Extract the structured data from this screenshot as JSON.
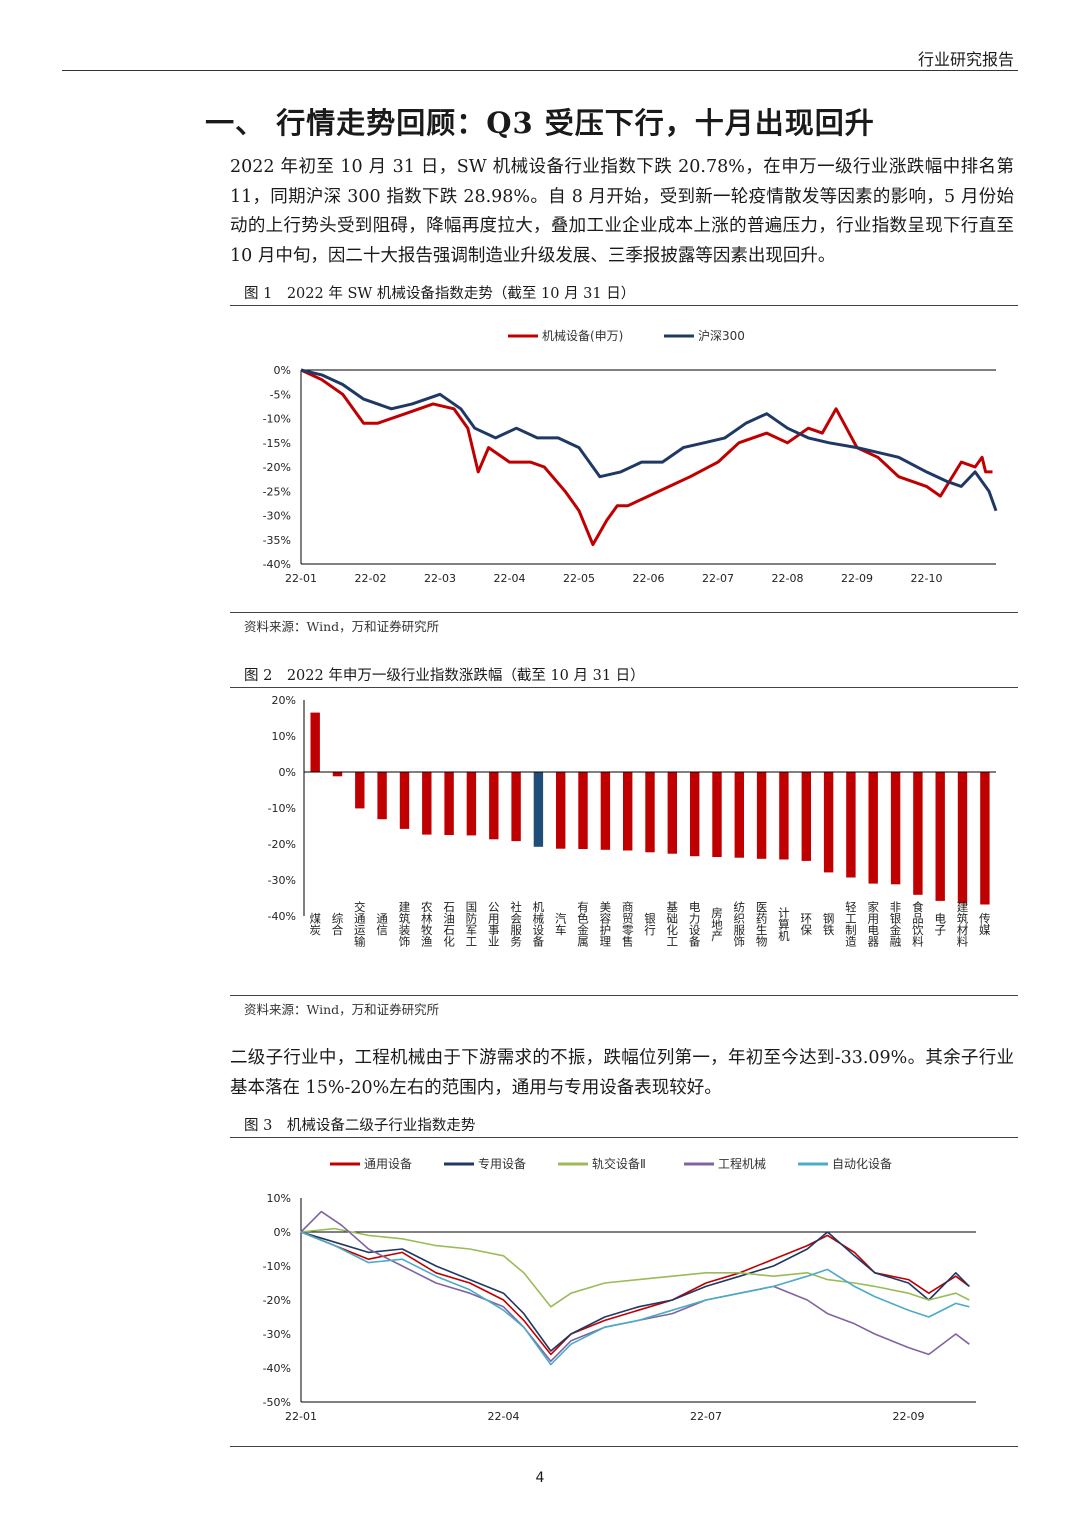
{
  "header": {
    "title": "行业研究报告"
  },
  "section": {
    "title": "一、 行情走势回顾：Q3 受压下行，十月出现回升"
  },
  "paragraphs": {
    "p1": "2022 年初至 10 月 31 日，SW 机械设备行业指数下跌 20.78%，在申万一级行业涨跌幅中排名第 11，同期沪深 300 指数下跌 28.98%。自 8 月开始，受到新一轮疫情散发等因素的影响，5 月份始动的上行势头受到阻碍，降幅再度拉大，叠加工业企业成本上涨的普遍压力，行业指数呈现下行直至 10 月中旬，因二十大报告强调制造业升级发展、三季报披露等因素出现回升。",
    "p2": "二级子行业中，工程机械由于下游需求的不振，跌幅位列第一，年初至今达到-33.09%。其余子行业基本落在 15%-20%左右的范围内，通用与专用设备表现较好。"
  },
  "figures": {
    "fig1": {
      "title": "图 1　2022 年 SW 机械设备指数走势（截至 10 月 31 日）",
      "source": "资料来源：Wind，万和证券研究所"
    },
    "fig2": {
      "title": "图 2　2022 年申万一级行业指数涨跌幅（截至 10 月 31 日）",
      "source": "资料来源：Wind，万和证券研究所"
    },
    "fig3": {
      "title": "图 3　机械设备二级子行业指数走势"
    }
  },
  "page_number": "4",
  "chart_data": [
    {
      "id": "fig1",
      "type": "line",
      "title": "2022 年 SW 机械设备指数走势",
      "x_labels": [
        "22-01",
        "22-02",
        "22-03",
        "22-04",
        "22-05",
        "22-06",
        "22-07",
        "22-08",
        "22-09",
        "22-10"
      ],
      "y_ticks": [
        0,
        -5,
        -10,
        -15,
        -20,
        -25,
        -30,
        -35,
        -40
      ],
      "y_tick_labels": [
        "0%",
        "-5%",
        "-10%",
        "-15%",
        "-20%",
        "-25%",
        "-30%",
        "-35%",
        "-40%"
      ],
      "ylim": [
        -40,
        0
      ],
      "xlim": [
        0,
        10
      ],
      "legend_position": "top-center",
      "series": [
        {
          "name": "机械设备(申万)",
          "color": "#C00000",
          "x": [
            0,
            0.3,
            0.6,
            0.9,
            1.1,
            1.5,
            1.9,
            2.2,
            2.4,
            2.55,
            2.7,
            3.0,
            3.3,
            3.5,
            3.8,
            4.0,
            4.2,
            4.4,
            4.55,
            4.7,
            5.0,
            5.3,
            5.6,
            6.0,
            6.3,
            6.7,
            7.0,
            7.3,
            7.5,
            7.7,
            8.0,
            8.3,
            8.6,
            9.0,
            9.2,
            9.5,
            9.7,
            9.8,
            9.85,
            9.95
          ],
          "y": [
            0,
            -2,
            -5,
            -11,
            -11,
            -9,
            -7,
            -8,
            -12,
            -21,
            -16,
            -19,
            -19,
            -20,
            -25,
            -29,
            -36,
            -31,
            -28,
            -28,
            -26,
            -24,
            -22,
            -19,
            -15,
            -13,
            -15,
            -12,
            -13,
            -8,
            -16,
            -18,
            -22,
            -24,
            -26,
            -19,
            -20,
            -18,
            -21,
            -21
          ]
        },
        {
          "name": "沪深300",
          "color": "#1F3864",
          "x": [
            0,
            0.3,
            0.6,
            0.9,
            1.3,
            1.6,
            2.0,
            2.3,
            2.5,
            2.8,
            3.1,
            3.4,
            3.7,
            4.0,
            4.3,
            4.6,
            4.9,
            5.2,
            5.5,
            5.8,
            6.1,
            6.4,
            6.7,
            7.0,
            7.3,
            7.6,
            8.0,
            8.3,
            8.6,
            9.0,
            9.3,
            9.5,
            9.7,
            9.9,
            10.0
          ],
          "y": [
            0,
            -1,
            -3,
            -6,
            -8,
            -7,
            -5,
            -8,
            -12,
            -14,
            -12,
            -14,
            -14,
            -16,
            -22,
            -21,
            -19,
            -19,
            -16,
            -15,
            -14,
            -11,
            -9,
            -12,
            -14,
            -15,
            -16,
            -17,
            -18,
            -21,
            -23,
            -24,
            -21,
            -25,
            -29
          ]
        }
      ]
    },
    {
      "id": "fig2",
      "type": "bar",
      "title": "2022 年申万一级行业指数涨跌幅",
      "categories": [
        "煤炭",
        "综合",
        "交通运输",
        "通信",
        "建筑装饰",
        "农林牧渔",
        "石油石化",
        "国防军工",
        "公用事业",
        "社会服务",
        "机械设备",
        "汽车",
        "有色金属",
        "美容护理",
        "商贸零售",
        "银行",
        "基础化工",
        "电力设备",
        "房地产",
        "纺织服饰",
        "医药生物",
        "计算机",
        "环保",
        "钢铁",
        "轻工制造",
        "家用电器",
        "非银金融",
        "食品饮料",
        "电子",
        "建筑材料",
        "传媒"
      ],
      "values": [
        16.5,
        -1.2,
        -10.1,
        -13.1,
        -15.8,
        -17.4,
        -17.5,
        -17.6,
        -18.7,
        -19.2,
        -20.78,
        -21.3,
        -21.4,
        -21.6,
        -21.8,
        -22.3,
        -22.7,
        -23.4,
        -23.6,
        -23.8,
        -24.1,
        -24.3,
        -24.7,
        -27.9,
        -29.3,
        -31.0,
        -31.2,
        -34.1,
        -35.8,
        -36.5,
        -36.8
      ],
      "highlight": "机械设备",
      "colors": {
        "default": "#C00000",
        "highlight": "#1F4E79"
      },
      "y_ticks": [
        20,
        10,
        0,
        -10,
        -20,
        -30,
        -40
      ],
      "y_tick_labels": [
        "20%",
        "10%",
        "0%",
        "-10%",
        "-20%",
        "-30%",
        "-40%"
      ],
      "ylim": [
        -40,
        20
      ]
    },
    {
      "id": "fig3",
      "type": "line",
      "title": "机械设备二级子行业指数走势",
      "x_labels": [
        "22-01",
        "22-04",
        "22-07",
        "22-09"
      ],
      "x_label_positions": [
        0,
        3,
        6,
        9
      ],
      "y_ticks": [
        10,
        0,
        -10,
        -20,
        -30,
        -40,
        -50
      ],
      "y_tick_labels": [
        "10%",
        "0%",
        "-10%",
        "-20%",
        "-30%",
        "-40%",
        "-50%"
      ],
      "ylim": [
        -50,
        10
      ],
      "xlim": [
        0,
        10
      ],
      "legend_position": "top-center",
      "series": [
        {
          "name": "通用设备",
          "color": "#C00000",
          "x": [
            0,
            0.5,
            1,
            1.5,
            2,
            2.5,
            3,
            3.3,
            3.7,
            4,
            4.5,
            5,
            5.5,
            6,
            6.5,
            7,
            7.5,
            7.8,
            8.2,
            8.5,
            9,
            9.3,
            9.7,
            9.9
          ],
          "y": [
            0,
            -4,
            -8,
            -6,
            -12,
            -15,
            -20,
            -26,
            -36,
            -30,
            -26,
            -23,
            -20,
            -15,
            -12,
            -8,
            -4,
            -1,
            -6,
            -12,
            -14,
            -18,
            -13,
            -16
          ]
        },
        {
          "name": "专用设备",
          "color": "#1F3864",
          "x": [
            0,
            0.5,
            1,
            1.5,
            2,
            2.5,
            3,
            3.3,
            3.7,
            4,
            4.5,
            5,
            5.5,
            6,
            6.5,
            7,
            7.5,
            7.8,
            8.2,
            8.5,
            9,
            9.3,
            9.7,
            9.9
          ],
          "y": [
            0,
            -3,
            -6,
            -5,
            -10,
            -14,
            -18,
            -24,
            -35,
            -30,
            -25,
            -22,
            -20,
            -16,
            -13,
            -10,
            -5,
            0,
            -7,
            -12,
            -15,
            -20,
            -12,
            -16
          ]
        },
        {
          "name": "轨交设备Ⅱ",
          "color": "#9BBB59",
          "x": [
            0,
            0.5,
            1,
            1.5,
            2,
            2.5,
            3,
            3.3,
            3.7,
            4,
            4.5,
            5,
            5.5,
            6,
            6.5,
            7,
            7.5,
            7.8,
            8.2,
            8.5,
            9,
            9.3,
            9.7,
            9.9
          ],
          "y": [
            0,
            1,
            -1,
            -2,
            -4,
            -5,
            -7,
            -12,
            -22,
            -18,
            -15,
            -14,
            -13,
            -12,
            -12,
            -13,
            -12,
            -14,
            -15,
            -16,
            -18,
            -20,
            -18,
            -20
          ]
        },
        {
          "name": "工程机械",
          "color": "#8064A2",
          "x": [
            0,
            0.3,
            0.6,
            1,
            1.5,
            2,
            2.5,
            3,
            3.3,
            3.7,
            4,
            4.5,
            5,
            5.5,
            6,
            6.5,
            7,
            7.5,
            7.8,
            8.2,
            8.5,
            9,
            9.3,
            9.7,
            9.9
          ],
          "y": [
            0,
            6,
            2,
            -5,
            -10,
            -15,
            -18,
            -22,
            -28,
            -38,
            -32,
            -28,
            -26,
            -24,
            -20,
            -18,
            -16,
            -20,
            -24,
            -27,
            -30,
            -34,
            -36,
            -30,
            -33
          ]
        },
        {
          "name": "自动化设备",
          "color": "#4BACC6",
          "x": [
            0,
            0.5,
            1,
            1.5,
            2,
            2.5,
            3,
            3.3,
            3.7,
            4,
            4.5,
            5,
            5.5,
            6,
            6.5,
            7,
            7.5,
            7.8,
            8.2,
            8.5,
            9,
            9.3,
            9.7,
            9.9
          ],
          "y": [
            0,
            -4,
            -9,
            -8,
            -13,
            -17,
            -23,
            -28,
            -39,
            -33,
            -28,
            -26,
            -23,
            -20,
            -18,
            -16,
            -13,
            -11,
            -16,
            -19,
            -23,
            -25,
            -21,
            -22
          ]
        }
      ]
    }
  ]
}
